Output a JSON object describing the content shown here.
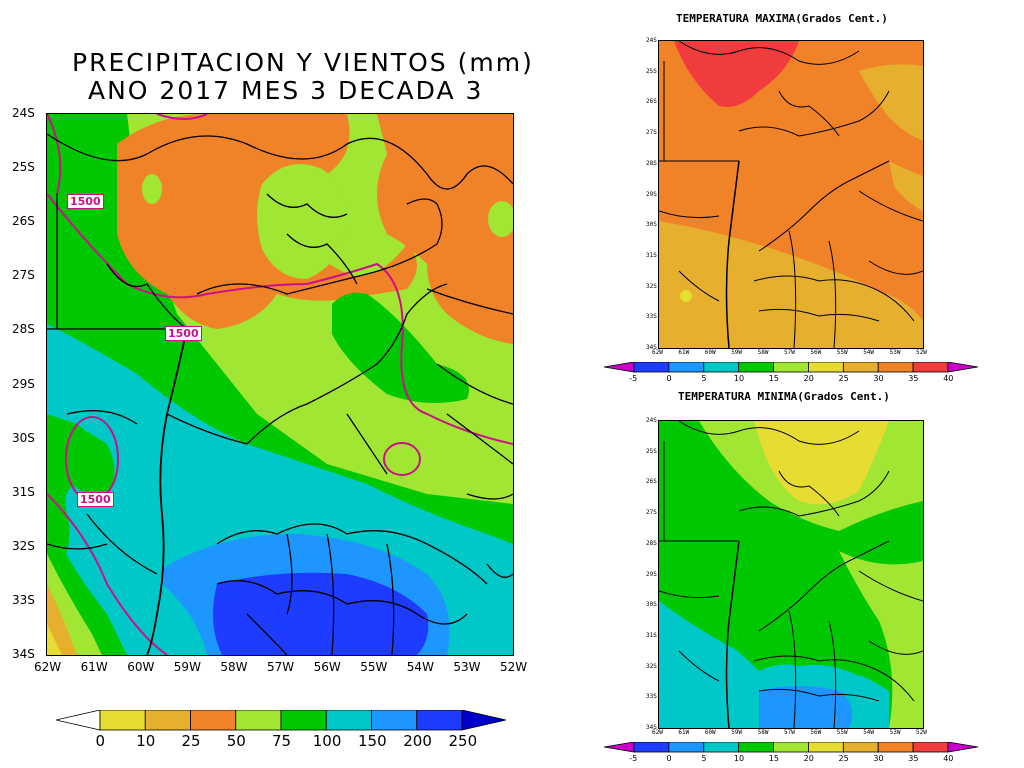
{
  "main_map": {
    "title_line1": "PRECIPITACION Y VIENTOS (mm)",
    "title_line2": "ANO 2017 MES 3 DECADA 3",
    "lat_ticks": [
      "24S",
      "25S",
      "26S",
      "27S",
      "28S",
      "29S",
      "30S",
      "31S",
      "32S",
      "33S",
      "34S"
    ],
    "lon_ticks": [
      "62W",
      "61W",
      "60W",
      "59W",
      "58W",
      "57W",
      "56W",
      "55W",
      "54W",
      "53W",
      "52W"
    ],
    "contour_labels": [
      "1500",
      "1500",
      "1500"
    ],
    "colorbar_labels": [
      "0",
      "10",
      "25",
      "50",
      "75",
      "100",
      "150",
      "200",
      "250"
    ],
    "colorbar_colors": [
      "#ffffff",
      "#e6dc32",
      "#e6af2d",
      "#f08228",
      "#a0e632",
      "#00c800",
      "#00c8c8",
      "#1e96ff",
      "#1e3cff",
      "#0000c8"
    ],
    "fill_colors": {
      "dry": "#f08228",
      "low": "#e6af2d",
      "moderate": "#a0e632",
      "wet": "#00c800",
      "very_wet": "#00c8c8",
      "heavy": "#1e96ff",
      "extreme": "#1e3cff",
      "contour": "#cc1188"
    }
  },
  "tmax_map": {
    "title": "TEMPERATURA MAXIMA(Grados Cent.)",
    "lat_ticks": [
      "24S",
      "25S",
      "26S",
      "27S",
      "28S",
      "29S",
      "30S",
      "31S",
      "32S",
      "33S",
      "34S"
    ],
    "lon_ticks": [
      "62W",
      "61W",
      "60W",
      "59W",
      "58W",
      "57W",
      "56W",
      "55W",
      "54W",
      "53W",
      "52W"
    ],
    "colorbar_labels": [
      "-5",
      "0",
      "5",
      "10",
      "15",
      "20",
      "25",
      "30",
      "35",
      "40"
    ]
  },
  "tmin_map": {
    "title": "TEMPERATURA MINIMA(Grados Cent.)",
    "lat_ticks": [
      "24S",
      "25S",
      "26S",
      "27S",
      "28S",
      "29S",
      "30S",
      "31S",
      "32S",
      "33S",
      "34S"
    ],
    "lon_ticks": [
      "62W",
      "61W",
      "60W",
      "59W",
      "58W",
      "57W",
      "56W",
      "55W",
      "54W",
      "53W",
      "52W"
    ],
    "colorbar_labels": [
      "-5",
      "0",
      "5",
      "10",
      "15",
      "20",
      "25",
      "30",
      "35",
      "40"
    ]
  },
  "temp_colorbar_colors": [
    "#c800c8",
    "#1e3cff",
    "#1e96ff",
    "#00c8c8",
    "#00c800",
    "#a0e632",
    "#e6dc32",
    "#e6af2d",
    "#f08228",
    "#f03c3c",
    "#c800c8"
  ]
}
